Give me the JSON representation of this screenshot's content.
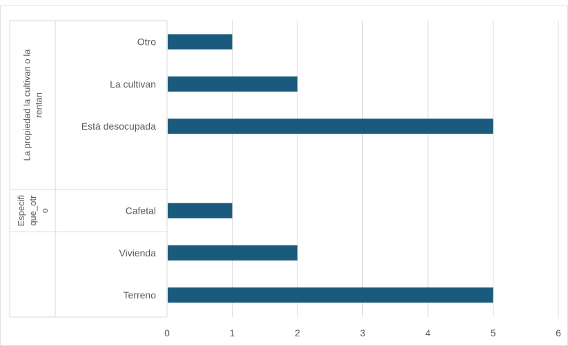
{
  "chart_data": {
    "type": "bar",
    "orientation": "horizontal",
    "title": "",
    "xlabel": "",
    "ylabel": "",
    "xlim": [
      0,
      6
    ],
    "xticks": [
      0,
      1,
      2,
      3,
      4,
      5,
      6
    ],
    "grid": true,
    "legend": "none",
    "bar_color": "#1a5b7d",
    "categories": [
      "Otro",
      "La cultivan",
      "Está desocupada",
      "",
      "Cafetal",
      "Vivienda",
      "Terreno"
    ],
    "values": [
      1,
      2,
      5,
      null,
      1,
      2,
      5
    ],
    "groups": [
      {
        "label_lines": [
          "La propiedad la cultivan o la",
          "rentan"
        ],
        "categories": [
          "Otro",
          "La cultivan",
          "Está desocupada",
          ""
        ]
      },
      {
        "label_lines": [
          "Especifi",
          "que_otr",
          "o"
        ],
        "categories": [
          "Cafetal"
        ]
      },
      {
        "label_lines": [],
        "categories": [
          "Vivienda",
          "Terreno"
        ]
      }
    ]
  }
}
